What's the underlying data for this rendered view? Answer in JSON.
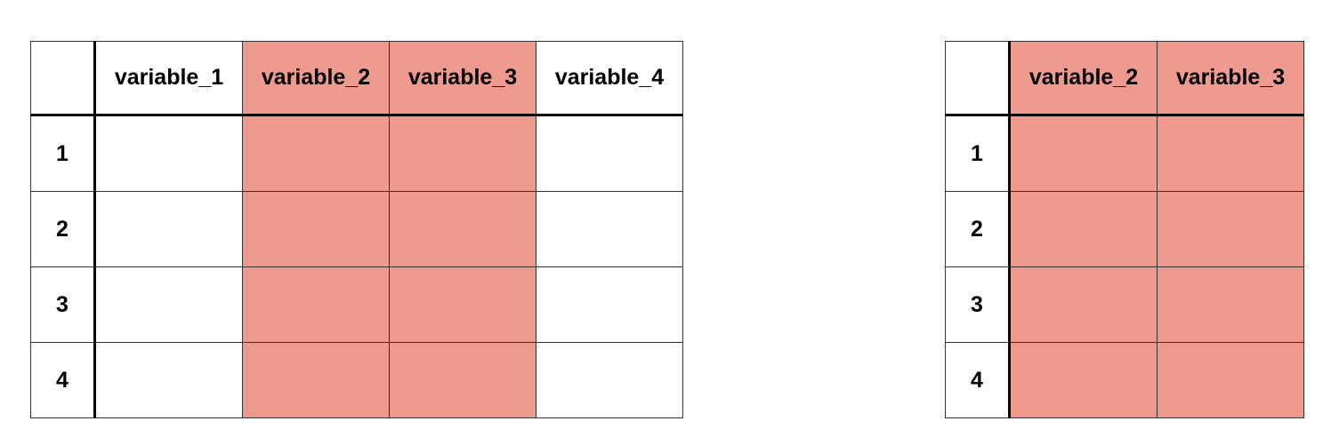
{
  "left_table": {
    "columns": [
      "variable_1",
      "variable_2",
      "variable_3",
      "variable_4"
    ],
    "highlighted_columns": [
      "variable_2",
      "variable_3"
    ],
    "rows": [
      "1",
      "2",
      "3",
      "4"
    ]
  },
  "right_table": {
    "columns": [
      "variable_2",
      "variable_3"
    ],
    "highlighted_columns": [
      "variable_2",
      "variable_3"
    ],
    "rows": [
      "1",
      "2",
      "3",
      "4"
    ]
  },
  "highlight_color": "#ef9a8f"
}
